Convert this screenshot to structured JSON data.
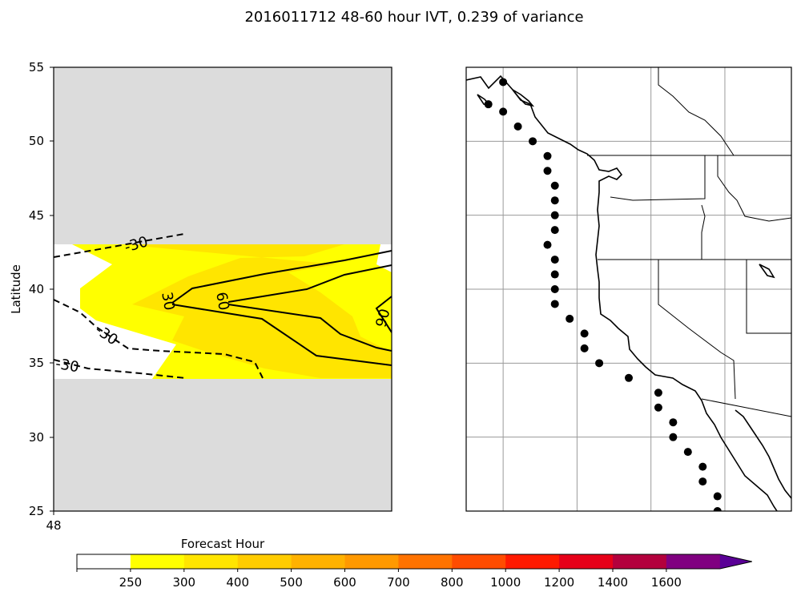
{
  "figure_title": "2016011712 48-60 hour IVT, 0.239 of variance",
  "colors": {
    "missing_bg": "#dcdcdc",
    "fill_250": "#ffff00",
    "fill_300": "#ffe500",
    "contour": "#000000",
    "colorbar": [
      "#ffffff",
      "#ffff00",
      "#ffe500",
      "#ffcc00",
      "#ffb200",
      "#ff9900",
      "#ff7300",
      "#ff4c00",
      "#ff1a00",
      "#e60019",
      "#b3003d",
      "#800080",
      "#5a0096"
    ]
  },
  "chart_data": [
    {
      "type": "heatmap",
      "title": "",
      "xlabel": "",
      "ylabel": "Latitude",
      "ylim": [
        25,
        55
      ],
      "yticks": [
        "25",
        "30",
        "35",
        "40",
        "45",
        "50",
        "55"
      ],
      "xticks": [
        "48"
      ],
      "valid_lat_range": [
        34,
        43
      ],
      "filled_levels": [
        250,
        300
      ],
      "contour_labels": [
        "-30",
        "-30",
        "-30",
        "30",
        "60",
        "90"
      ]
    },
    {
      "type": "scatter",
      "title": "",
      "series": [
        {
          "values": [
            {
              "lon": -127.5,
              "lat": 54.0
            },
            {
              "lon": -128.5,
              "lat": 52.5
            },
            {
              "lon": -127.5,
              "lat": 52.0
            },
            {
              "lon": -126.5,
              "lat": 51.0
            },
            {
              "lon": -125.5,
              "lat": 50.0
            },
            {
              "lon": -124.5,
              "lat": 49.0
            },
            {
              "lon": -124.5,
              "lat": 48.0
            },
            {
              "lon": -124.0,
              "lat": 47.0
            },
            {
              "lon": -124.0,
              "lat": 46.0
            },
            {
              "lon": -124.0,
              "lat": 45.0
            },
            {
              "lon": -124.0,
              "lat": 44.0
            },
            {
              "lon": -124.5,
              "lat": 43.0
            },
            {
              "lon": -124.0,
              "lat": 42.0
            },
            {
              "lon": -124.0,
              "lat": 41.0
            },
            {
              "lon": -124.0,
              "lat": 40.0
            },
            {
              "lon": -124.0,
              "lat": 39.0
            },
            {
              "lon": -123.0,
              "lat": 38.0
            },
            {
              "lon": -122.0,
              "lat": 37.0
            },
            {
              "lon": -122.0,
              "lat": 36.0
            },
            {
              "lon": -121.0,
              "lat": 35.0
            },
            {
              "lon": -119.0,
              "lat": 34.0
            },
            {
              "lon": -117.0,
              "lat": 33.0
            },
            {
              "lon": -117.0,
              "lat": 32.0
            },
            {
              "lon": -116.0,
              "lat": 31.0
            },
            {
              "lon": -116.0,
              "lat": 30.0
            },
            {
              "lon": -115.0,
              "lat": 29.0
            },
            {
              "lon": -114.0,
              "lat": 28.0
            },
            {
              "lon": -114.0,
              "lat": 27.0
            },
            {
              "lon": -113.0,
              "lat": 26.0
            },
            {
              "lon": -113.0,
              "lat": 25.0
            }
          ]
        }
      ],
      "xlim": [
        -130,
        -108
      ],
      "ylim": [
        25,
        55
      ],
      "gridlines_lon": [
        -127.5,
        -122.5,
        -117.5,
        -112.5
      ],
      "gridlines_lat": [
        30,
        35,
        40,
        45,
        50
      ]
    }
  ],
  "colorbar": {
    "label": "Forecast Hour",
    "tick_labels": [
      "250",
      "300",
      "400",
      "500",
      "600",
      "700",
      "800",
      "1000",
      "1200",
      "1400",
      "1600"
    ]
  }
}
